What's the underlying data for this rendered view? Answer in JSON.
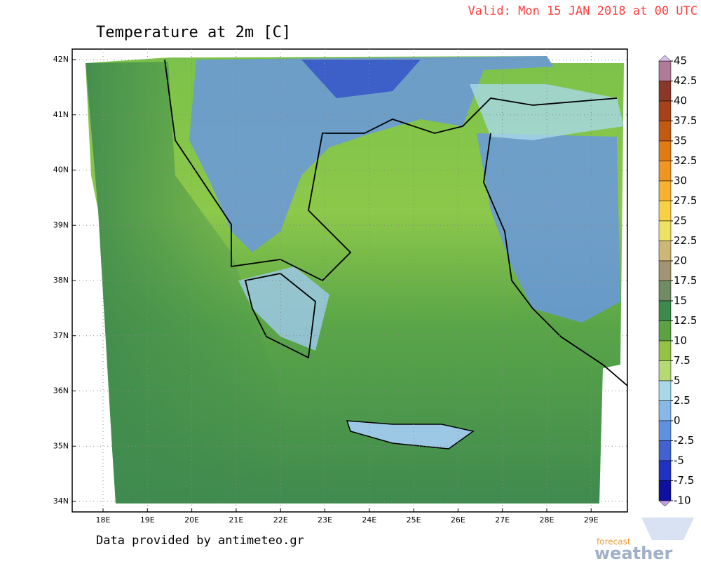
{
  "header": {
    "valid": "Valid: Mon 15 JAN 2018 at 00 UTC",
    "title": "Temperature at 2m [C]"
  },
  "map": {
    "lat_labels": [
      "42N",
      "41N",
      "40N",
      "39N",
      "38N",
      "37N",
      "36N",
      "35N",
      "34N"
    ],
    "lon_labels": [
      "18E",
      "19E",
      "20E",
      "21E",
      "22E",
      "23E",
      "24E",
      "25E",
      "26E",
      "27E",
      "28E",
      "29E"
    ]
  },
  "colorbar": {
    "ticks": [
      45,
      42.5,
      40,
      37.5,
      35,
      32.5,
      30,
      27.5,
      25,
      22.5,
      20,
      17.5,
      15,
      12.5,
      10,
      7.5,
      5,
      2.5,
      0,
      -2.5,
      -5,
      -7.5,
      -10
    ],
    "colors": [
      "#b07a98",
      "#8a3828",
      "#a5421c",
      "#c45a12",
      "#e07a12",
      "#f09422",
      "#f8b232",
      "#f8d044",
      "#eee266",
      "#cdb676",
      "#a29470",
      "#6f8c62",
      "#3c8a4c",
      "#5ca242",
      "#92c244",
      "#b4da74",
      "#a8d8e8",
      "#88b8e8",
      "#6090e0",
      "#4262d2",
      "#2032c2",
      "#1010a0"
    ]
  },
  "footer": {
    "credit": "Data provided by antimeteo.gr",
    "logo_top": "forecast",
    "logo_bottom": "weather"
  }
}
